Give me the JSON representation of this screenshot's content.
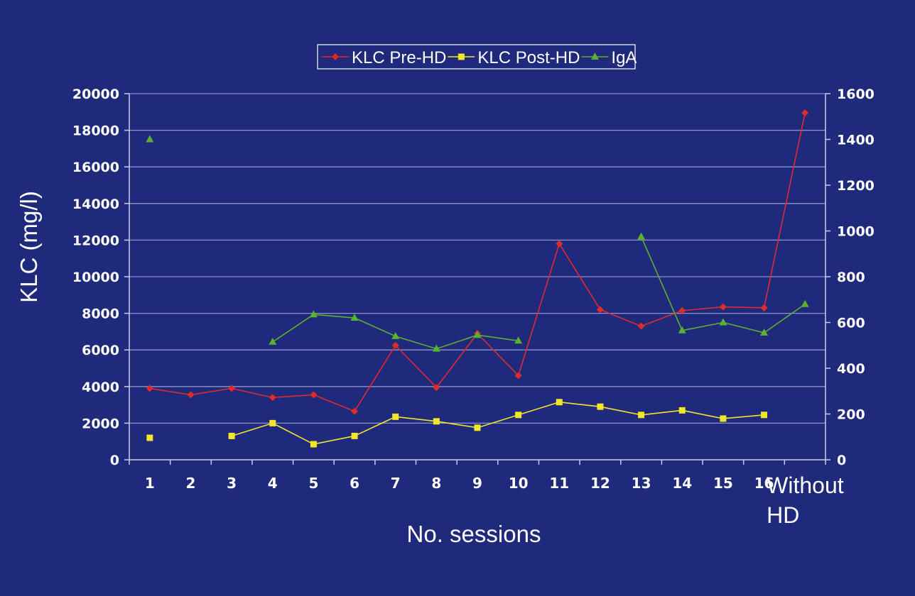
{
  "chart_data": {
    "type": "line",
    "categories": [
      "1",
      "2",
      "3",
      "4",
      "5",
      "6",
      "7",
      "8",
      "9",
      "10",
      "11",
      "12",
      "13",
      "14",
      "15",
      "16",
      "Without HD"
    ],
    "xlabel": "No. sessions",
    "ylabel": "KLC (mg/l)",
    "ylim": [
      0,
      20000
    ],
    "y_ticks": [
      "0",
      "2000",
      "4000",
      "6000",
      "8000",
      "10000",
      "12000",
      "14000",
      "16000",
      "18000",
      "20000"
    ],
    "y2lim": [
      0,
      1600
    ],
    "y2_ticks": [
      "0",
      "200",
      "400",
      "600",
      "800",
      "1000",
      "1200",
      "1400",
      "1600"
    ],
    "grid": true,
    "legend_position": "top-center",
    "series": [
      {
        "name": "KLC Pre-HD",
        "axis": "left",
        "marker": "diamond",
        "color": "#e02b2b",
        "values": [
          3900,
          3550,
          3900,
          3400,
          3550,
          2650,
          6250,
          3950,
          6900,
          4600,
          11800,
          8200,
          7300,
          8150,
          8350,
          8300,
          18950
        ]
      },
      {
        "name": "KLC Post-HD",
        "axis": "left",
        "marker": "square",
        "color": "#f2e629",
        "values": [
          1200,
          null,
          1300,
          2000,
          850,
          1300,
          2350,
          2100,
          1750,
          2450,
          3150,
          2900,
          2450,
          2700,
          2250,
          2450,
          null
        ]
      },
      {
        "name": "IgA",
        "axis": "right",
        "marker": "triangle",
        "color": "#5ab02f",
        "values": [
          1400,
          null,
          null,
          515,
          635,
          620,
          540,
          485,
          545,
          520,
          null,
          null,
          975,
          565,
          600,
          555,
          680
        ]
      }
    ]
  }
}
